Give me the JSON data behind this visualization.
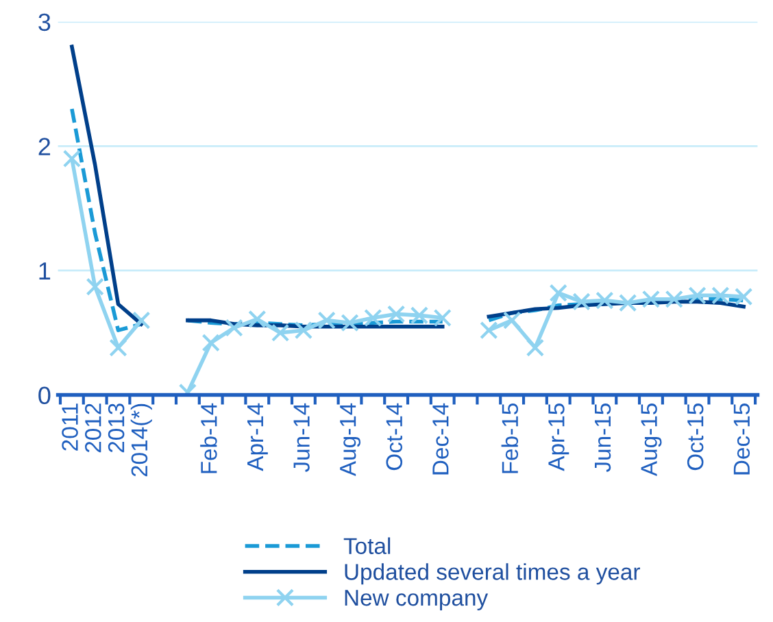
{
  "chart_data": {
    "type": "line",
    "categories": [
      "2011",
      "2012",
      "2013",
      "2014(*)",
      null,
      null,
      "Feb-14",
      null,
      "Apr-14",
      null,
      "Jun-14",
      null,
      "Aug-14",
      null,
      "Oct-14",
      null,
      "Dec-14",
      null,
      null,
      "Feb-15",
      null,
      "Apr-15",
      null,
      "Jun-15",
      null,
      "Aug-15",
      null,
      "Oct-15",
      null,
      "Dec-15"
    ],
    "series": [
      {
        "name": "Total",
        "color": "#1a9ad6",
        "line_style": "dashed",
        "marker": "none",
        "values": [
          2.3,
          1.3,
          0.52,
          0.57,
          null,
          0.6,
          0.58,
          0.57,
          0.58,
          0.57,
          0.56,
          0.57,
          0.57,
          0.58,
          0.59,
          0.59,
          0.59,
          null,
          0.6,
          0.66,
          0.68,
          0.72,
          0.73,
          0.74,
          0.74,
          0.75,
          0.76,
          0.77,
          0.77,
          0.76
        ]
      },
      {
        "name": "Updated several times a year",
        "color": "#003f8a",
        "line_style": "solid",
        "marker": "none",
        "values": [
          2.8,
          1.85,
          0.73,
          0.57,
          null,
          0.6,
          0.6,
          0.57,
          0.56,
          0.56,
          0.55,
          0.55,
          0.55,
          0.55,
          0.55,
          0.55,
          0.55,
          null,
          0.63,
          0.66,
          0.69,
          0.7,
          0.72,
          0.73,
          0.74,
          0.74,
          0.75,
          0.75,
          0.74,
          0.71
        ]
      },
      {
        "name": "New company",
        "color": "#8fd3f0",
        "line_style": "solid",
        "marker": "cross",
        "values": [
          1.9,
          0.87,
          0.38,
          0.6,
          null,
          0.02,
          0.42,
          0.54,
          0.61,
          0.5,
          0.52,
          0.6,
          0.58,
          0.62,
          0.65,
          0.64,
          0.62,
          null,
          0.52,
          0.6,
          0.38,
          0.82,
          0.75,
          0.76,
          0.74,
          0.77,
          0.77,
          0.8,
          0.8,
          0.79
        ]
      }
    ],
    "ylim": [
      0,
      3
    ],
    "yticks": [
      0,
      1,
      2,
      3
    ],
    "grid": "y",
    "legend": "bottom"
  }
}
